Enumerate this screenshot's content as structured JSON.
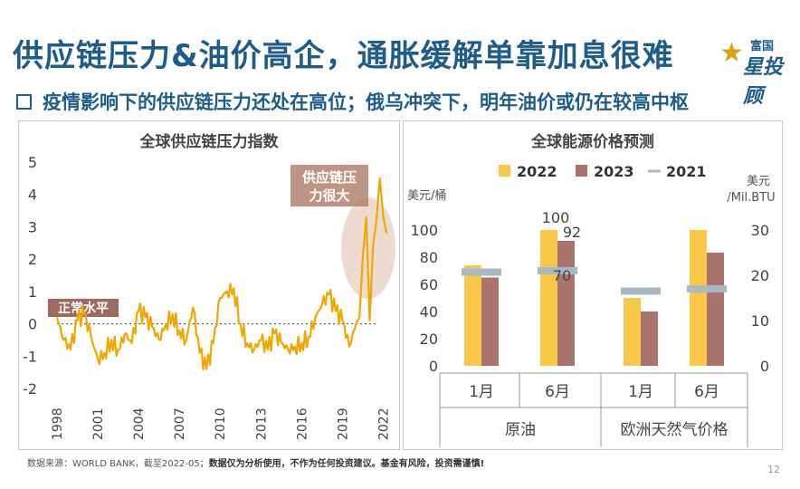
{
  "header": {
    "title": "供应链压力&油价高企，通胀缓解单靠加息很难",
    "subtitle": "疫情影响下的供应链压力还处在高位；俄乌冲突下，明年油价或仍在较高中枢",
    "logo_line1": "富国",
    "logo_line2": "星投顾",
    "accent_color": "#1f5c8a"
  },
  "chart_data": [
    {
      "type": "line",
      "title": "全球供应链压力指数",
      "x_tick_labels": [
        "1998",
        "2001",
        "2004",
        "2007",
        "2010",
        "2013",
        "2016",
        "2019",
        "2022"
      ],
      "xlim": [
        1998,
        2022.5
      ],
      "ylim": [
        -2,
        5
      ],
      "y_ticks": [
        -2,
        -1,
        0,
        1,
        2,
        3,
        4,
        5
      ],
      "series": [
        {
          "x": [
            1998,
            1998.5,
            1999,
            1999.5,
            2000,
            2000.5,
            2001,
            2001.5,
            2002,
            2002.5,
            2003,
            2003.5,
            2004,
            2004.5,
            2005,
            2005.5,
            2006,
            2006.5,
            2007,
            2007.5,
            2008,
            2008.5,
            2009,
            2009.5,
            2010,
            2010.5,
            2011,
            2011.5,
            2012,
            2012.5,
            2013,
            2013.5,
            2014,
            2014.5,
            2015,
            2015.5,
            2016,
            2016.5,
            2017,
            2017.5,
            2018,
            2018.5,
            2019,
            2019.5,
            2020,
            2020.25,
            2020.5,
            2020.75,
            2021,
            2021.25,
            2021.5,
            2021.75,
            2022,
            2022.25
          ],
          "values": [
            0.2,
            -0.5,
            -0.8,
            0.1,
            0.3,
            -0.4,
            -1.1,
            -0.9,
            -0.5,
            -0.8,
            -0.3,
            -0.6,
            0.4,
            0.2,
            -0.1,
            -0.5,
            0.0,
            0.3,
            -0.2,
            -0.5,
            0.5,
            -0.9,
            -1.4,
            -0.6,
            0.8,
            1.0,
            1.1,
            0.0,
            -0.6,
            -0.8,
            -0.5,
            -0.8,
            -0.3,
            -0.6,
            -0.8,
            -0.7,
            -0.6,
            -0.4,
            0.2,
            0.6,
            0.9,
            0.4,
            0.1,
            -0.7,
            0.0,
            0.2,
            2.1,
            3.3,
            0.1,
            2.4,
            3.2,
            4.5,
            3.3,
            2.8
          ],
          "color": "#f0a800"
        }
      ],
      "reference_line": {
        "value": 0,
        "label": "正常水平"
      },
      "annotation": "供应链压力很大"
    },
    {
      "type": "bar",
      "title": "全球能源价格预测",
      "legend": [
        "2022",
        "2023",
        "2021"
      ],
      "legend_position": "top",
      "left_axis_unit": "美元/桶",
      "right_axis_unit_line1": "美元",
      "right_axis_unit_line2": "/Mil.BTU",
      "left_ylim": [
        0,
        120
      ],
      "left_ticks": [
        0,
        20,
        40,
        60,
        80,
        100
      ],
      "right_ylim": [
        0,
        36
      ],
      "right_ticks": [
        0,
        10,
        20,
        30
      ],
      "groups": [
        {
          "name": "原油",
          "axis": "left",
          "categories": [
            "1月",
            "6月"
          ],
          "series": [
            {
              "name": "2022",
              "values": [
                74,
                100
              ],
              "color": "#f9c84a"
            },
            {
              "name": "2023",
              "values": [
                65,
                92
              ],
              "color": "#a9746b"
            },
            {
              "name": "2021",
              "values": [
                69,
                70
              ],
              "color": "#a8b8c6"
            }
          ],
          "data_labels": [
            "100",
            "92",
            "70"
          ]
        },
        {
          "name": "欧洲天然气价格",
          "axis": "right",
          "categories": [
            "1月",
            "6月"
          ],
          "series": [
            {
              "name": "2022",
              "values": [
                15,
                30
              ],
              "color": "#f9c84a"
            },
            {
              "name": "2023",
              "values": [
                12,
                25
              ],
              "color": "#a9746b"
            },
            {
              "name": "2021",
              "values": [
                16.5,
                17
              ],
              "color": "#a8b8c6"
            }
          ]
        }
      ]
    }
  ],
  "footer": {
    "source": "数据来源：WORLD BANK，截至2022-05；",
    "disclaimer": "数据仅为分析使用，不作为任何投资建议。基金有风险，投资需谨慎!"
  },
  "page_number": "12"
}
